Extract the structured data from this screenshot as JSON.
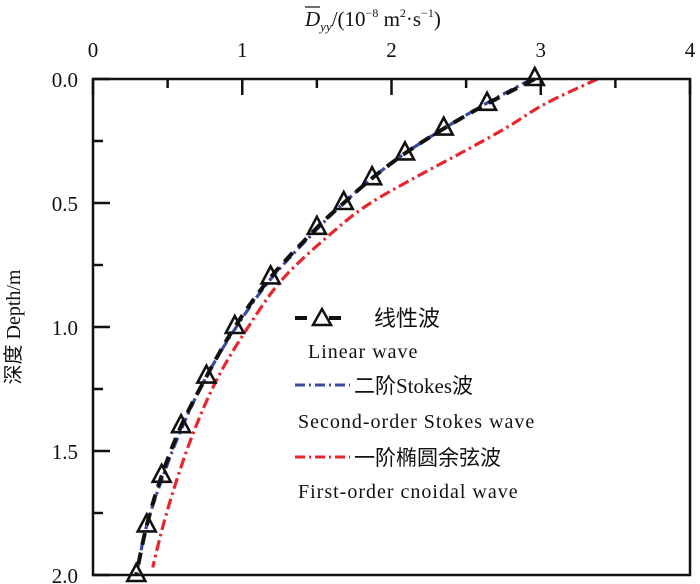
{
  "chart_data": {
    "type": "line",
    "title": "",
    "xlabel": {
      "main": "D",
      "sub": "yy",
      "unit_prefix": "/(10",
      "exp1": "−8",
      "mid": " m",
      "exp2": "2",
      "dot": "·s",
      "exp3": "−1",
      "close": ")"
    },
    "ylabel": "深度 Depth/m",
    "xlim": [
      0,
      4
    ],
    "ylim": [
      0,
      2.0
    ],
    "y_inverted": true,
    "x_axis_position": "top",
    "xticks": [
      "0",
      "1",
      "2",
      "3",
      "4"
    ],
    "yticks": [
      "0.0",
      "0.5",
      "1.0",
      "1.5",
      "2.0"
    ],
    "legend_position": "lower-right",
    "series": [
      {
        "name": "线性波",
        "name_en": "Linear wave",
        "color": "#111111",
        "style": "dashed-triangle",
        "y": [
          0,
          0.1,
          0.2,
          0.3,
          0.4,
          0.5,
          0.6,
          0.8,
          1.0,
          1.2,
          1.4,
          1.6,
          1.8,
          2.0
        ],
        "x": [
          2.96,
          2.64,
          2.35,
          2.09,
          1.87,
          1.68,
          1.5,
          1.19,
          0.95,
          0.76,
          0.59,
          0.46,
          0.36,
          0.29
        ]
      },
      {
        "name": "二阶Stokes波",
        "name_en": "Second-order Stokes wave",
        "color": "#3a4aa0",
        "style": "dash-dot",
        "y": [
          0,
          0.1,
          0.2,
          0.3,
          0.4,
          0.5,
          0.6,
          0.8,
          1.0,
          1.2,
          1.4,
          1.6,
          1.8,
          1.97
        ],
        "x": [
          2.94,
          2.63,
          2.35,
          2.09,
          1.87,
          1.68,
          1.51,
          1.2,
          0.96,
          0.76,
          0.6,
          0.47,
          0.36,
          0.3
        ]
      },
      {
        "name": "一阶椭圆余弦波",
        "name_en": "First-order cnoidal wave",
        "color": "#e8262d",
        "style": "dash-dot",
        "y": [
          0,
          0.1,
          0.2,
          0.3,
          0.4,
          0.5,
          0.6,
          0.8,
          1.0,
          1.2,
          1.4,
          1.6,
          1.8,
          1.97
        ],
        "x": [
          3.38,
          3.03,
          2.76,
          2.46,
          2.15,
          1.86,
          1.64,
          1.28,
          1.04,
          0.84,
          0.69,
          0.57,
          0.47,
          0.4
        ]
      }
    ]
  }
}
